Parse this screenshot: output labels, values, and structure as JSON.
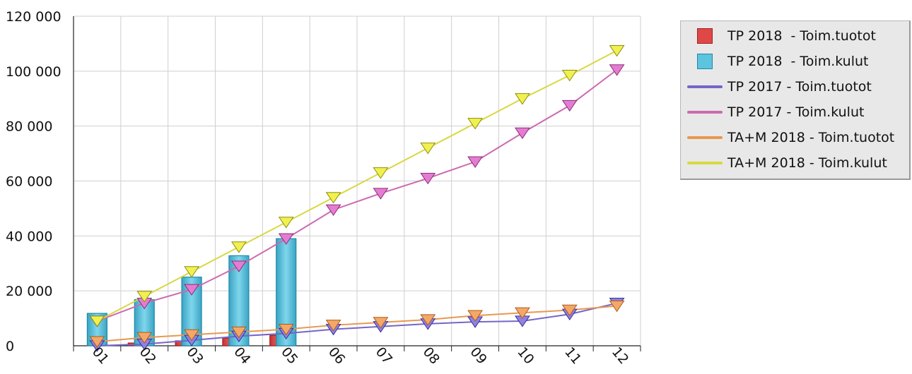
{
  "chart_data": {
    "type": "bar",
    "categories": [
      "01",
      "02",
      "03",
      "04",
      "05",
      "06",
      "07",
      "08",
      "09",
      "10",
      "11",
      "12"
    ],
    "ylim": [
      0,
      120000
    ],
    "yticks": [
      0,
      20000,
      40000,
      60000,
      80000,
      100000,
      120000
    ],
    "ytick_labels": [
      "0",
      "20 000",
      "40 000",
      "60 000",
      "80 000",
      "100 000",
      "120 000"
    ],
    "grid": true,
    "legend_position": "right-top",
    "series": [
      {
        "name": "TP 2018  - Toim.tuotot",
        "kind": "bar",
        "color": "#e04848",
        "values": [
          0,
          1000,
          1800,
          2800,
          3800,
          null,
          null,
          null,
          null,
          null,
          null,
          null
        ]
      },
      {
        "name": "TP 2018  - Toim.kulut",
        "kind": "bar",
        "color": "#5cc4de",
        "values": [
          11800,
          16800,
          25000,
          32800,
          39000,
          null,
          null,
          null,
          null,
          null,
          null,
          null
        ]
      },
      {
        "name": "TP 2017 - Toim.tuotot",
        "kind": "line",
        "color": "#7466c8",
        "values": [
          0,
          600,
          2000,
          3500,
          4500,
          6000,
          7000,
          8000,
          8700,
          9000,
          11500,
          15500
        ]
      },
      {
        "name": "TP 2017 - Toim.kulut",
        "kind": "line",
        "color": "#cc6ab0",
        "values": [
          9000,
          15500,
          20500,
          29000,
          39000,
          49500,
          55500,
          61000,
          67000,
          77500,
          87500,
          100500
        ]
      },
      {
        "name": "TA+M 2018 - Toim.tuotot",
        "kind": "line",
        "color": "#e89850",
        "values": [
          1500,
          3000,
          4000,
          5000,
          6000,
          7500,
          8500,
          9500,
          11000,
          12000,
          13000,
          14500
        ]
      },
      {
        "name": "TA+M 2018 - Toim.kulut",
        "kind": "line",
        "color": "#d8d840",
        "values": [
          9000,
          18000,
          27000,
          36000,
          45000,
          54000,
          63000,
          72000,
          81000,
          90000,
          98500,
          107500
        ]
      }
    ]
  }
}
